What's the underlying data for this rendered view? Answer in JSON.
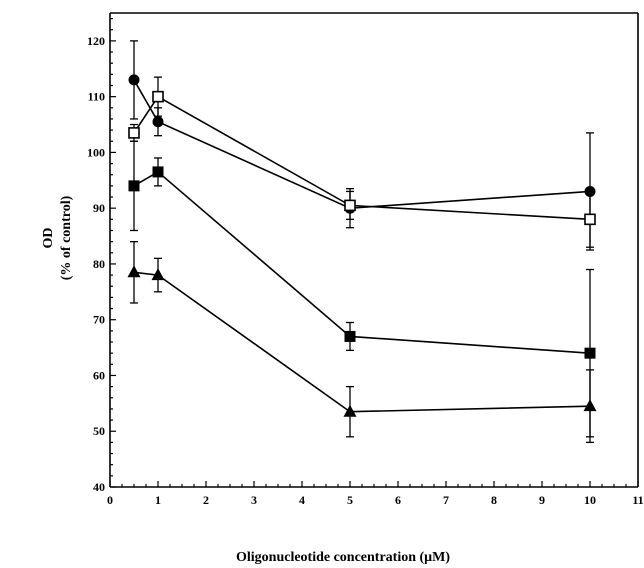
{
  "chart_data": {
    "type": "line",
    "title": "",
    "xlabel": "Oligonucleotide concentration (μM)",
    "ylabel": "OD",
    "ylabel_sub": "(% of control)",
    "xlim": [
      0,
      11
    ],
    "ylim": [
      40,
      125
    ],
    "xticks": [
      0,
      1,
      2,
      3,
      4,
      5,
      6,
      7,
      8,
      9,
      10,
      11
    ],
    "yticks": [
      40,
      50,
      60,
      70,
      80,
      90,
      100,
      110,
      120
    ],
    "grid": false,
    "x": [
      0.5,
      1,
      5,
      10
    ],
    "series": [
      {
        "marker": "filled-circle",
        "values": [
          113,
          105.5,
          90,
          93
        ],
        "err": [
          7,
          2.5,
          3.5,
          10.5
        ]
      },
      {
        "marker": "open-square",
        "values": [
          103.5,
          110,
          90.5,
          88
        ],
        "err": [
          1.5,
          3.5,
          2.5,
          5
        ]
      },
      {
        "marker": "filled-square",
        "values": [
          94,
          96.5,
          67,
          64
        ],
        "err": [
          8,
          2.5,
          2.5,
          15
        ]
      },
      {
        "marker": "filled-triangle",
        "values": [
          78.5,
          78,
          53.5,
          54.5
        ],
        "err": [
          5.5,
          3,
          4.5,
          6.5
        ]
      }
    ]
  }
}
